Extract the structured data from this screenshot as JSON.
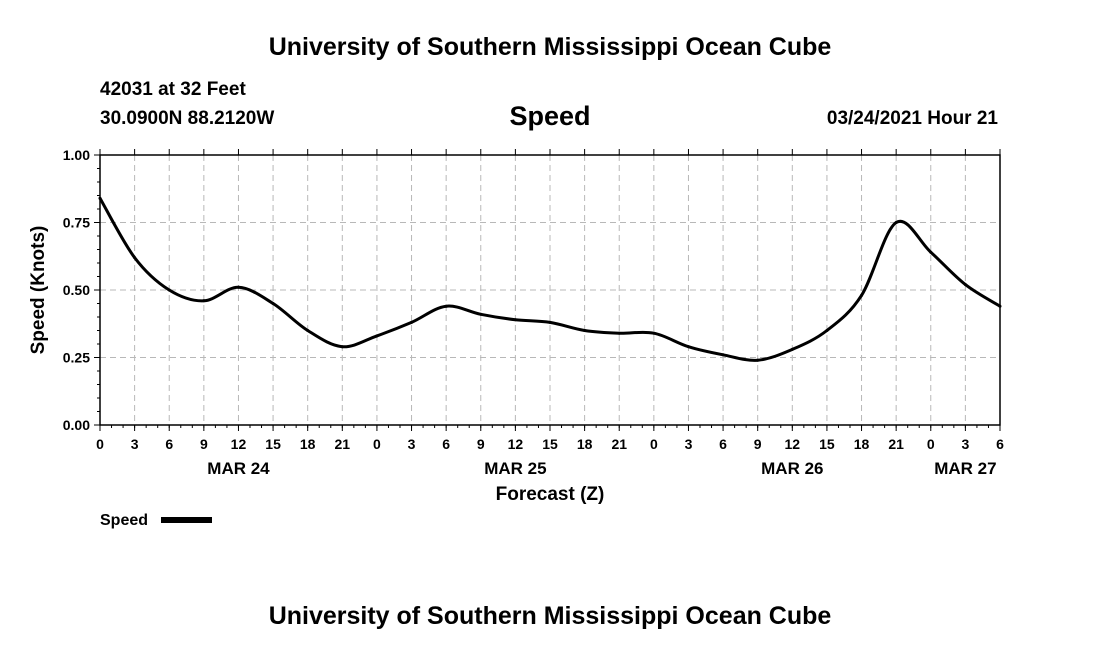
{
  "header": {
    "top_title": "University of Southern Mississippi Ocean Cube",
    "bottom_title": "University of Southern Mississippi Ocean Cube",
    "station": "42031 at 32 Feet",
    "location": "30.0900N 88.2120W",
    "timestamp": "03/24/2021 Hour 21"
  },
  "legend": {
    "label": "Speed"
  },
  "chart_data": {
    "type": "line",
    "title": "Speed",
    "xlabel": "Forecast (Z)",
    "ylabel": "Speed (Knots)",
    "ylim": [
      0,
      1
    ],
    "y_ticks": [
      "0.00",
      "0.25",
      "0.50",
      "0.75",
      "1.00"
    ],
    "x_range_hours": [
      0,
      78
    ],
    "x_tick_labels": [
      "0",
      "3",
      "6",
      "9",
      "12",
      "15",
      "18",
      "21",
      "0",
      "3",
      "6",
      "9",
      "12",
      "15",
      "18",
      "21",
      "0",
      "3",
      "6",
      "9",
      "12",
      "15",
      "18",
      "21",
      "0",
      "3",
      "6"
    ],
    "day_labels": [
      {
        "label": "MAR 24",
        "hour": 12
      },
      {
        "label": "MAR 25",
        "hour": 36
      },
      {
        "label": "MAR 26",
        "hour": 60
      },
      {
        "label": "MAR 27",
        "hour": 75
      }
    ],
    "grid": true,
    "series": [
      {
        "name": "Speed",
        "x_hours": [
          0,
          3,
          6,
          9,
          12,
          15,
          18,
          21,
          24,
          27,
          30,
          33,
          36,
          39,
          42,
          45,
          48,
          51,
          54,
          57,
          60,
          63,
          66,
          69,
          72,
          75,
          78
        ],
        "values": [
          0.84,
          0.62,
          0.5,
          0.46,
          0.51,
          0.45,
          0.35,
          0.29,
          0.33,
          0.38,
          0.44,
          0.41,
          0.39,
          0.38,
          0.35,
          0.34,
          0.34,
          0.29,
          0.26,
          0.24,
          0.28,
          0.35,
          0.48,
          0.75,
          0.64,
          0.52,
          0.44
        ]
      }
    ]
  }
}
